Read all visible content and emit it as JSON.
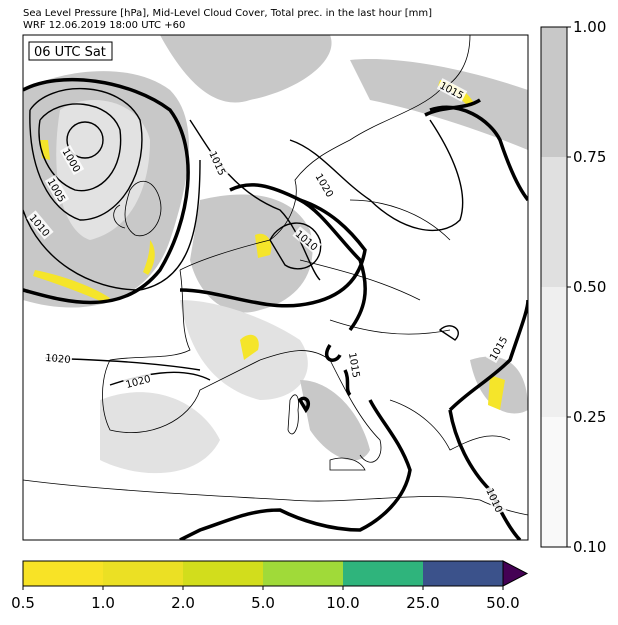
{
  "header": {
    "title": "Sea Level Pressure [hPa], Mid-Level Cloud Cover, Total prec. in the last hour [mm]",
    "subtitle": "WRF 12.06.2019 18:00 UTC +60"
  },
  "map": {
    "time_label": "06 UTC Sat",
    "contour_labels": [
      "1015",
      "1000",
      "1005",
      "1010",
      "1015",
      "1020",
      "1010",
      "1020",
      "1020",
      "1015",
      "1015",
      "1010"
    ]
  },
  "cloud_colorbar": {
    "ticks": [
      "1.00",
      "0.75",
      "0.50",
      "0.25",
      "0.10"
    ]
  },
  "precip_colorbar": {
    "ticks": [
      "0.5",
      "1.0",
      "2.0",
      "5.0",
      "10.0",
      "25.0",
      "50.0"
    ]
  }
}
